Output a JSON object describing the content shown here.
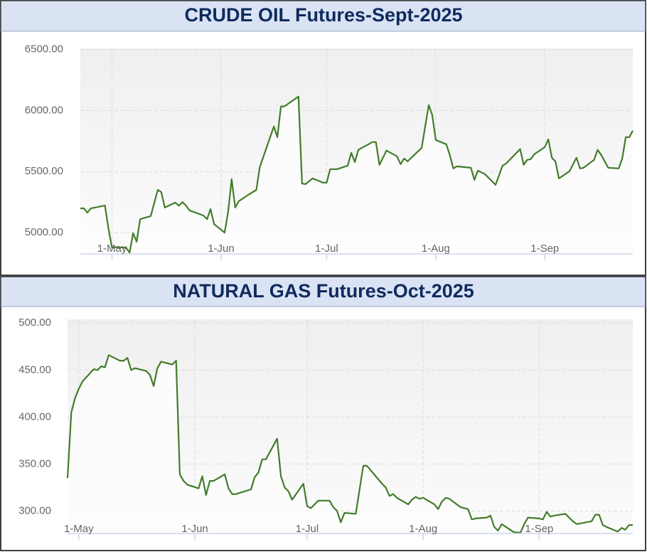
{
  "chart_data": [
    {
      "type": "line",
      "title": "CRUDE OIL Futures-Sept-2025",
      "color": "#437c2b",
      "grid": true,
      "x": [
        "2025-04-22",
        "2025-04-23",
        "2025-04-24",
        "2025-04-25",
        "2025-04-28",
        "2025-04-29",
        "2025-04-30",
        "2025-05-01",
        "2025-05-02",
        "2025-05-05",
        "2025-05-06",
        "2025-05-07",
        "2025-05-08",
        "2025-05-09",
        "2025-05-12",
        "2025-05-14",
        "2025-05-15",
        "2025-05-16",
        "2025-05-19",
        "2025-05-20",
        "2025-05-21",
        "2025-05-22",
        "2025-05-23",
        "2025-05-27",
        "2025-05-28",
        "2025-05-29",
        "2025-05-30",
        "2025-06-02",
        "2025-06-03",
        "2025-06-04",
        "2025-06-05",
        "2025-06-06",
        "2025-06-09",
        "2025-06-11",
        "2025-06-12",
        "2025-06-16",
        "2025-06-17",
        "2025-06-18",
        "2025-06-19",
        "2025-06-23",
        "2025-06-24",
        "2025-06-25",
        "2025-06-27",
        "2025-06-30",
        "2025-07-01",
        "2025-07-02",
        "2025-07-04",
        "2025-07-07",
        "2025-07-08",
        "2025-07-09",
        "2025-07-10",
        "2025-07-14",
        "2025-07-15",
        "2025-07-16",
        "2025-07-18",
        "2025-07-21",
        "2025-07-22",
        "2025-07-23",
        "2025-07-24",
        "2025-07-28",
        "2025-07-30",
        "2025-07-31",
        "2025-08-01",
        "2025-08-04",
        "2025-08-05",
        "2025-08-06",
        "2025-08-07",
        "2025-08-11",
        "2025-08-12",
        "2025-08-13",
        "2025-08-15",
        "2025-08-18",
        "2025-08-20",
        "2025-08-21",
        "2025-08-25",
        "2025-08-26",
        "2025-08-27",
        "2025-08-28",
        "2025-08-29",
        "2025-09-01",
        "2025-09-02",
        "2025-09-03",
        "2025-09-04",
        "2025-09-05",
        "2025-09-08",
        "2025-09-10",
        "2025-09-11",
        "2025-09-12",
        "2025-09-15",
        "2025-09-16",
        "2025-09-17",
        "2025-09-19",
        "2025-09-22",
        "2025-09-23",
        "2025-09-24",
        "2025-09-25",
        "2025-09-26"
      ],
      "values": [
        5199,
        5199,
        5164,
        5199,
        5216,
        5222,
        5030,
        4877,
        4880,
        4877,
        4836,
        4995,
        4925,
        5110,
        5135,
        5350,
        5333,
        5205,
        5246,
        5220,
        5250,
        5222,
        5182,
        5140,
        5110,
        5193,
        5070,
        5000,
        5170,
        5438,
        5205,
        5257,
        5315,
        5350,
        5537,
        5870,
        5782,
        6034,
        6034,
        6115,
        5403,
        5397,
        5444,
        5409,
        5409,
        5520,
        5520,
        5549,
        5654,
        5578,
        5678,
        5742,
        5742,
        5555,
        5672,
        5625,
        5561,
        5607,
        5584,
        5695,
        6045,
        5964,
        5759,
        5724,
        5637,
        5526,
        5543,
        5531,
        5432,
        5508,
        5479,
        5391,
        5549,
        5566,
        5684,
        5555,
        5596,
        5602,
        5642,
        5701,
        5765,
        5613,
        5584,
        5444,
        5502,
        5613,
        5526,
        5531,
        5596,
        5678,
        5637,
        5531,
        5526,
        5607,
        5782,
        5782,
        5835
      ],
      "xlim": [
        "2025-04-22",
        "2025-09-26"
      ],
      "xticks": [
        {
          "value": "2025-05-01",
          "label": "1-May"
        },
        {
          "value": "2025-06-01",
          "label": "1-Jun"
        },
        {
          "value": "2025-07-01",
          "label": "1-Jul"
        },
        {
          "value": "2025-08-01",
          "label": "1-Aug"
        },
        {
          "value": "2025-09-01",
          "label": "1-Sep"
        }
      ],
      "ylim": [
        4825,
        6510
      ],
      "yticks": [
        {
          "value": 5000,
          "label": "5000.00"
        },
        {
          "value": 5500,
          "label": "5500.00"
        },
        {
          "value": 6000,
          "label": "6000.00"
        },
        {
          "value": 6500,
          "label": "6500.00"
        }
      ]
    },
    {
      "type": "line",
      "title": "NATURAL GAS Futures-Oct-2025",
      "color": "#437c2b",
      "grid": true,
      "x": [
        "2025-04-28",
        "2025-04-29",
        "2025-04-30",
        "2025-05-01",
        "2025-05-02",
        "2025-05-05",
        "2025-05-06",
        "2025-05-07",
        "2025-05-08",
        "2025-05-09",
        "2025-05-12",
        "2025-05-13",
        "2025-05-14",
        "2025-05-15",
        "2025-05-16",
        "2025-05-19",
        "2025-05-20",
        "2025-05-21",
        "2025-05-22",
        "2025-05-23",
        "2025-05-26",
        "2025-05-27",
        "2025-05-28",
        "2025-05-29",
        "2025-05-30",
        "2025-06-02",
        "2025-06-03",
        "2025-06-04",
        "2025-06-05",
        "2025-06-06",
        "2025-06-09",
        "2025-06-10",
        "2025-06-11",
        "2025-06-12",
        "2025-06-16",
        "2025-06-17",
        "2025-06-18",
        "2025-06-19",
        "2025-06-20",
        "2025-06-23",
        "2025-06-24",
        "2025-06-25",
        "2025-06-26",
        "2025-06-27",
        "2025-06-30",
        "2025-07-01",
        "2025-07-02",
        "2025-07-04",
        "2025-07-07",
        "2025-07-08",
        "2025-07-09",
        "2025-07-10",
        "2025-07-11",
        "2025-07-14",
        "2025-07-16",
        "2025-07-17",
        "2025-07-21",
        "2025-07-22",
        "2025-07-23",
        "2025-07-24",
        "2025-07-25",
        "2025-07-28",
        "2025-07-29",
        "2025-07-30",
        "2025-07-31",
        "2025-08-01",
        "2025-08-04",
        "2025-08-05",
        "2025-08-06",
        "2025-08-07",
        "2025-08-08",
        "2025-08-11",
        "2025-08-13",
        "2025-08-14",
        "2025-08-15",
        "2025-08-18",
        "2025-08-19",
        "2025-08-20",
        "2025-08-21",
        "2025-08-22",
        "2025-08-25",
        "2025-08-26",
        "2025-08-27",
        "2025-08-28",
        "2025-08-29",
        "2025-09-01",
        "2025-09-02",
        "2025-09-03",
        "2025-09-04",
        "2025-09-05",
        "2025-09-08",
        "2025-09-09",
        "2025-09-10",
        "2025-09-11",
        "2025-09-15",
        "2025-09-16",
        "2025-09-17",
        "2025-09-18",
        "2025-09-19",
        "2025-09-22",
        "2025-09-23",
        "2025-09-24",
        "2025-09-25",
        "2025-09-26"
      ],
      "values": [
        335,
        405,
        420,
        430,
        438,
        451,
        450,
        454,
        453,
        466,
        460,
        460,
        463,
        450,
        452,
        449,
        445,
        433,
        452,
        459,
        456,
        460,
        339,
        332,
        328,
        324,
        337,
        317,
        332,
        332,
        339,
        324,
        318,
        318,
        323,
        336,
        341,
        355,
        355,
        377,
        337,
        325,
        321,
        312,
        329,
        305,
        303,
        311,
        311,
        304,
        300,
        288,
        298,
        297,
        348,
        348,
        329,
        325,
        316,
        318,
        314,
        307,
        312,
        315,
        313,
        314,
        307,
        302,
        310,
        314,
        313,
        304,
        302,
        291,
        292,
        293,
        295,
        283,
        279,
        286,
        278,
        277,
        277,
        286,
        293,
        292,
        291,
        299,
        294,
        295,
        297,
        293,
        289,
        286,
        289,
        296,
        296,
        285,
        283,
        278,
        282,
        280,
        285,
        285
      ],
      "xlim": [
        "2025-04-28",
        "2025-09-26"
      ],
      "xticks": [
        {
          "value": "2025-05-01",
          "label": "1-May"
        },
        {
          "value": "2025-06-01",
          "label": "1-Jun"
        },
        {
          "value": "2025-07-01",
          "label": "1-Jul"
        },
        {
          "value": "2025-08-01",
          "label": "1-Aug"
        },
        {
          "value": "2025-09-01",
          "label": "1-Sep"
        }
      ],
      "ylim": [
        276,
        504
      ],
      "yticks": [
        {
          "value": 300,
          "label": "300.00"
        },
        {
          "value": 350,
          "label": "350.00"
        },
        {
          "value": 400,
          "label": "400.00"
        },
        {
          "value": 450,
          "label": "450.00"
        },
        {
          "value": 500,
          "label": "500.00"
        }
      ]
    }
  ]
}
